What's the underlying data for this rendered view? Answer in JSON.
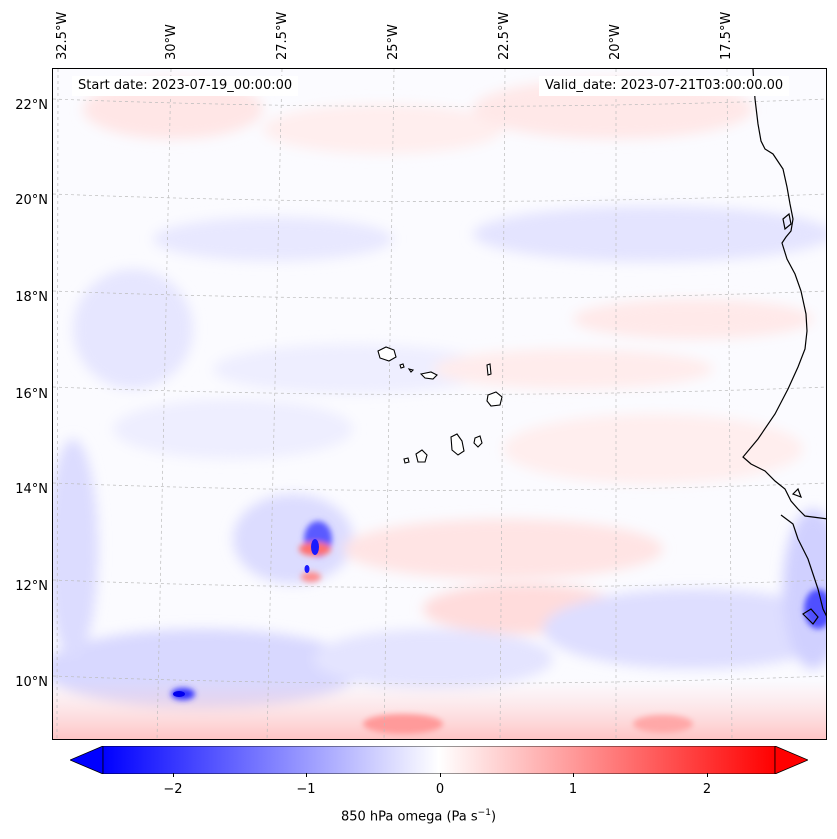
{
  "map": {
    "type": "contour-map",
    "variable_label": "850 hPa omega (Pa s",
    "variable_label_sup": "−1",
    "variable_label_end": ")",
    "start_date": "Start date: 2023-07-19_00:00:00",
    "valid_date": "Valid_date: 2023-07-21T03:00:00.00",
    "lon_labels": [
      "32.5°W",
      "30°W",
      "27.5°W",
      "25°W",
      "22.5°W",
      "20°W",
      "17.5°W"
    ],
    "lat_labels": [
      "22°N",
      "20°N",
      "18°N",
      "16°N",
      "14°N",
      "12°N",
      "10°N"
    ],
    "extent": {
      "lon_min": -33.5,
      "lon_max": -16.0,
      "lat_min": 8.8,
      "lat_max": 22.8
    },
    "gridlines": true,
    "colormap": "bwr",
    "colors": {
      "negative": "#0000ff",
      "zero": "#ffffff",
      "positive": "#ff0000",
      "coast": "#000000"
    }
  },
  "colorbar": {
    "range": [
      -2.7,
      2.7
    ],
    "ticks": [
      "−2",
      "−1",
      "0",
      "1",
      "2"
    ],
    "tick_values": [
      -2,
      -1,
      0,
      1,
      2
    ],
    "extend": "both"
  }
}
